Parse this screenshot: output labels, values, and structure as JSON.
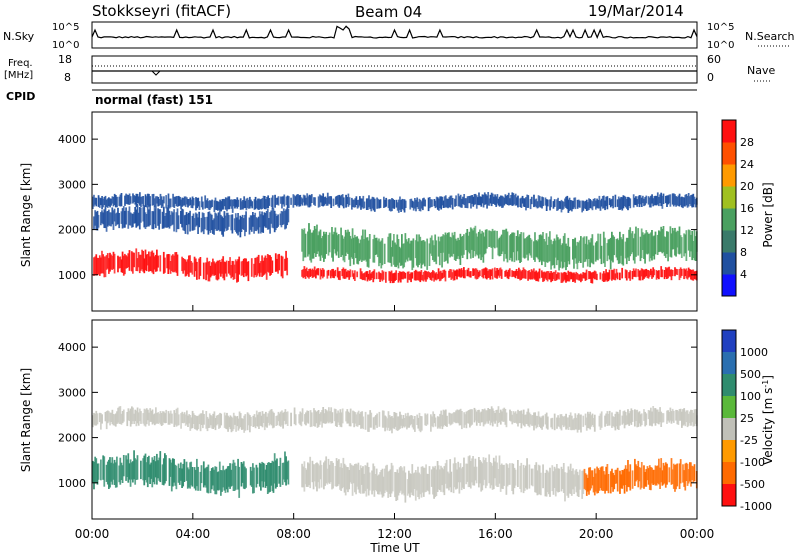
{
  "header": {
    "title": "Stokkseyri (fitACF)",
    "beam": "Beam 04",
    "date": "19/Mar/2014"
  },
  "nsky_panel": {
    "left_label": "N.Sky",
    "left_ticks": [
      "10^5",
      "10^0"
    ],
    "right_ticks": [
      "10^5",
      "10^0"
    ],
    "right_label": "N.Search"
  },
  "freq_panel": {
    "left_label_1": "Freq.",
    "left_label_2": "[MHz]",
    "left_ticks": [
      "18",
      "8"
    ],
    "right_ticks": [
      "60",
      "0"
    ],
    "right_label": "Nave"
  },
  "cpid": {
    "label": "CPID",
    "value": "normal (fast) 151"
  },
  "colors": {
    "power_scale": [
      "#1010ff",
      "#2050a0",
      "#3a7a6a",
      "#4aa060",
      "#a0c020",
      "#ff9a00",
      "#ff5000",
      "#ff1010"
    ],
    "velocity_scale": [
      "#2040c0",
      "#2a6fb0",
      "#2f8c6e",
      "#5ab83a",
      "#c0c0b8",
      "#ff9a00",
      "#ff6a00",
      "#ff1010"
    ],
    "background_velocity": "#c8c8c0"
  },
  "chart_data": [
    {
      "type": "heatmap",
      "name": "power",
      "ylabel": "Slant Range [km]",
      "yticks": [
        "1000",
        "2000",
        "3000",
        "4000"
      ],
      "ylim": [
        200,
        4600
      ],
      "xticks": [
        "00:00",
        "04:00",
        "08:00",
        "12:00",
        "16:00",
        "20:00",
        "00:00"
      ],
      "xlim_hours": [
        0,
        24
      ],
      "colorbar": {
        "label": "Power [dB]",
        "ticks": [
          "4",
          "8",
          "12",
          "16",
          "20",
          "24",
          "28"
        ],
        "range": [
          0,
          32
        ]
      },
      "bands": [
        {
          "x0": 0.0,
          "x1": 7.8,
          "center": 1200,
          "width": 500,
          "color": "#ff1010"
        },
        {
          "x0": 8.3,
          "x1": 24.0,
          "center": 1000,
          "width": 250,
          "color": "#ff1010"
        },
        {
          "x0": 8.3,
          "x1": 24.0,
          "center": 1600,
          "width": 700,
          "color": "#4aa060"
        },
        {
          "x0": 0.0,
          "x1": 7.8,
          "center": 2200,
          "width": 500,
          "color": "#2050a0"
        },
        {
          "x0": 0.0,
          "x1": 24.0,
          "center": 2600,
          "width": 300,
          "color": "#2050a0"
        }
      ]
    },
    {
      "type": "heatmap",
      "name": "velocity",
      "ylabel": "Slant Range [km]",
      "yticks": [
        "1000",
        "2000",
        "3000",
        "4000"
      ],
      "ylim": [
        200,
        4600
      ],
      "xticks": [
        "00:00",
        "04:00",
        "08:00",
        "12:00",
        "16:00",
        "20:00",
        "00:00"
      ],
      "xlim_hours": [
        0,
        24
      ],
      "xlabel": "Time UT",
      "colorbar": {
        "label": "Velocity [m s^-1]",
        "ticks": [
          "1000",
          "500",
          "100",
          "25",
          "-25",
          "-100",
          "-500",
          "-1000"
        ]
      },
      "bands": [
        {
          "x0": 0.0,
          "x1": 7.8,
          "center": 1200,
          "width": 700,
          "color": "#2f8c6e"
        },
        {
          "x0": 8.3,
          "x1": 19.5,
          "center": 1100,
          "width": 700,
          "color": "#c8c8c0"
        },
        {
          "x0": 19.5,
          "x1": 24.0,
          "center": 1100,
          "width": 600,
          "color": "#ff6a00"
        },
        {
          "x0": 0.0,
          "x1": 24.0,
          "center": 2400,
          "width": 400,
          "color": "#c8c8c0"
        }
      ]
    }
  ]
}
